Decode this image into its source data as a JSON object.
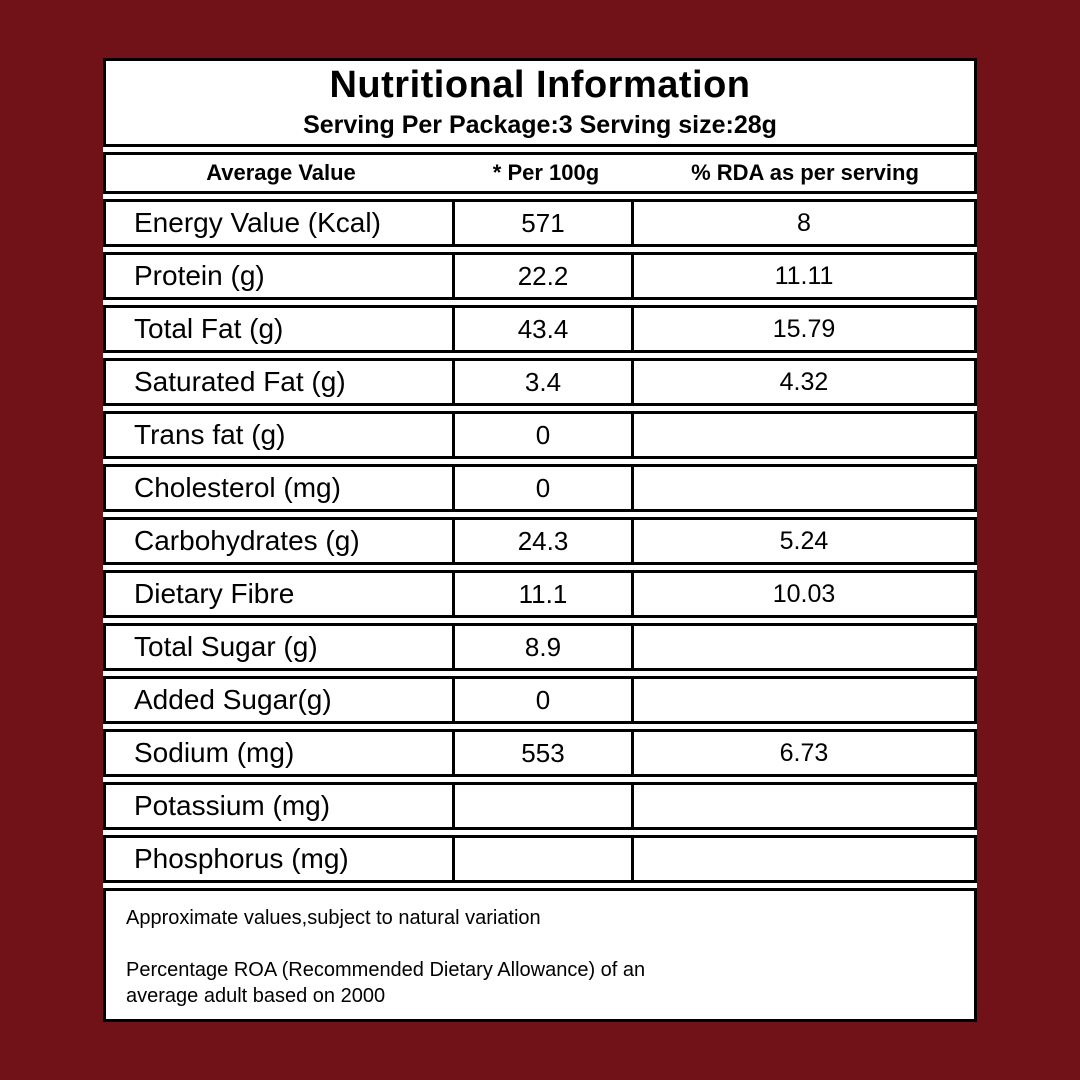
{
  "colors": {
    "background": "#711219",
    "panel": "#FFFFFF",
    "border": "#000000",
    "text": "#000000"
  },
  "header": {
    "title": "Nutritional Information",
    "subtitle": "Serving Per Package:3 Serving size:28g"
  },
  "table": {
    "columns": [
      "Average Value",
      "* Per 100g",
      "% RDA as per serving"
    ],
    "rows": [
      {
        "label": "Energy Value (Kcal)",
        "per_100g": "571",
        "rda": "8"
      },
      {
        "label": "Protein (g)",
        "per_100g": "22.2",
        "rda": "11.11"
      },
      {
        "label": "Total Fat (g)",
        "per_100g": "43.4",
        "rda": "15.79"
      },
      {
        "label": "Saturated Fat (g)",
        "per_100g": "3.4",
        "rda": "4.32"
      },
      {
        "label": "Trans fat (g)",
        "per_100g": "0",
        "rda": ""
      },
      {
        "label": "Cholesterol (mg)",
        "per_100g": "0",
        "rda": ""
      },
      {
        "label": "Carbohydrates (g)",
        "per_100g": "24.3",
        "rda": "5.24"
      },
      {
        "label": "Dietary Fibre",
        "per_100g": "11.1",
        "rda": "10.03"
      },
      {
        "label": "Total Sugar (g)",
        "per_100g": "8.9",
        "rda": ""
      },
      {
        "label": "Added Sugar(g)",
        "per_100g": "0",
        "rda": ""
      },
      {
        "label": "Sodium (mg)",
        "per_100g": "553",
        "rda": "6.73"
      },
      {
        "label": "Potassium (mg)",
        "per_100g": "",
        "rda": ""
      },
      {
        "label": "Phosphorus (mg)",
        "per_100g": "",
        "rda": ""
      }
    ]
  },
  "footer": {
    "note1": "Approximate values,subject to natural variation",
    "note2_lines": [
      "Percentage ROA (Recommended Dietary Allowance) of an",
      "average adult based on 2000"
    ]
  }
}
